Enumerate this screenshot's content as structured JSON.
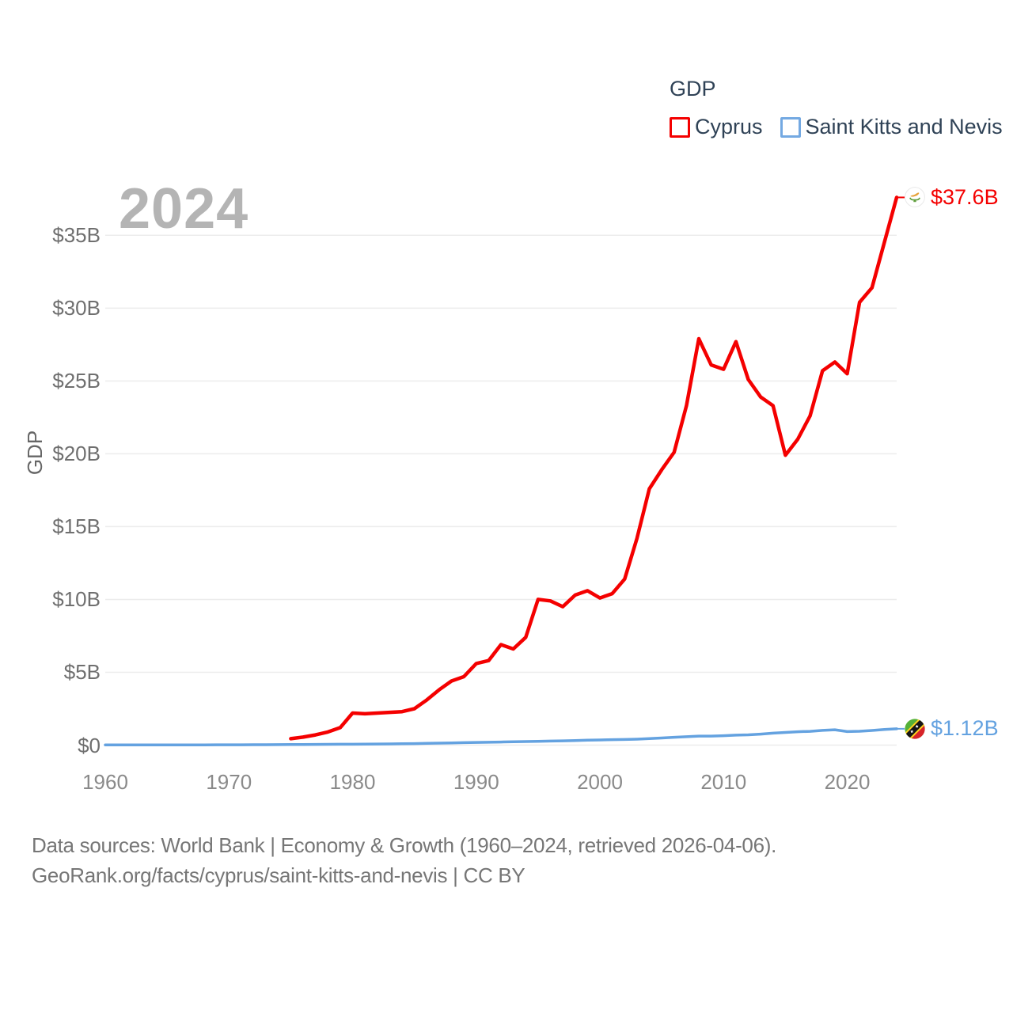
{
  "legend": {
    "title": "GDP",
    "items": [
      {
        "label": "Cyprus",
        "color": "#f40000"
      },
      {
        "label": "Saint Kitts and Nevis",
        "color": "#74a9e2"
      }
    ]
  },
  "watermark": "2024",
  "footer": {
    "line1": "Data sources: World Bank | Economy & Growth (1960–2024, retrieved 2026-04-06).",
    "line2": "GeoRank.org/facts/cyprus/saint-kitts-and-nevis | CC BY"
  },
  "chart_data": {
    "type": "line",
    "title": "GDP",
    "ylabel": "GDP",
    "xlabel": "",
    "x_range": [
      1960,
      2024
    ],
    "ylim": [
      0,
      38
    ],
    "grid": true,
    "legend_position": "top-right",
    "y_ticks": {
      "values": [
        35,
        30,
        25,
        20,
        15,
        10,
        5,
        0
      ],
      "labels": [
        "$35B",
        "$30B",
        "$25B",
        "$20B",
        "$15B",
        "$10B",
        "$5B",
        "$0"
      ]
    },
    "x_ticks": [
      "1960",
      "1970",
      "1980",
      "1990",
      "2000",
      "2010",
      "2020"
    ],
    "series": [
      {
        "name": "Cyprus",
        "color": "#f40000",
        "flag_icon": "cyprus-flag-icon",
        "start_year": 1975,
        "end_label": "$37.6B",
        "values": [
          0.44,
          0.55,
          0.7,
          0.9,
          1.2,
          2.2,
          2.15,
          2.2,
          2.25,
          2.3,
          2.5,
          3.1,
          3.8,
          4.4,
          4.7,
          5.6,
          5.8,
          6.9,
          6.6,
          7.4,
          10.0,
          9.9,
          9.5,
          10.3,
          10.6,
          10.1,
          10.4,
          11.4,
          14.2,
          17.6,
          18.9,
          20.1,
          23.3,
          27.9,
          26.1,
          25.8,
          27.7,
          25.1,
          23.9,
          23.3,
          19.9,
          21.0,
          22.6,
          25.7,
          26.3,
          25.5,
          30.4,
          31.4,
          34.5,
          37.6
        ]
      },
      {
        "name": "Saint Kitts and Nevis",
        "color": "#64a2e0",
        "flag_icon": "saint-kitts-and-nevis-flag-icon",
        "start_year": 1960,
        "end_label": "$1.12B",
        "values": [
          0.012,
          0.013,
          0.013,
          0.014,
          0.015,
          0.016,
          0.017,
          0.018,
          0.019,
          0.02,
          0.022,
          0.024,
          0.026,
          0.029,
          0.033,
          0.037,
          0.042,
          0.047,
          0.052,
          0.058,
          0.061,
          0.068,
          0.075,
          0.083,
          0.093,
          0.103,
          0.119,
          0.137,
          0.153,
          0.168,
          0.185,
          0.196,
          0.214,
          0.232,
          0.243,
          0.258,
          0.277,
          0.296,
          0.314,
          0.335,
          0.355,
          0.373,
          0.385,
          0.406,
          0.445,
          0.487,
          0.536,
          0.576,
          0.618,
          0.622,
          0.646,
          0.682,
          0.708,
          0.754,
          0.818,
          0.87,
          0.917,
          0.946,
          1.011,
          1.053,
          0.927,
          0.949,
          1.007,
          1.069,
          1.12
        ]
      }
    ]
  }
}
